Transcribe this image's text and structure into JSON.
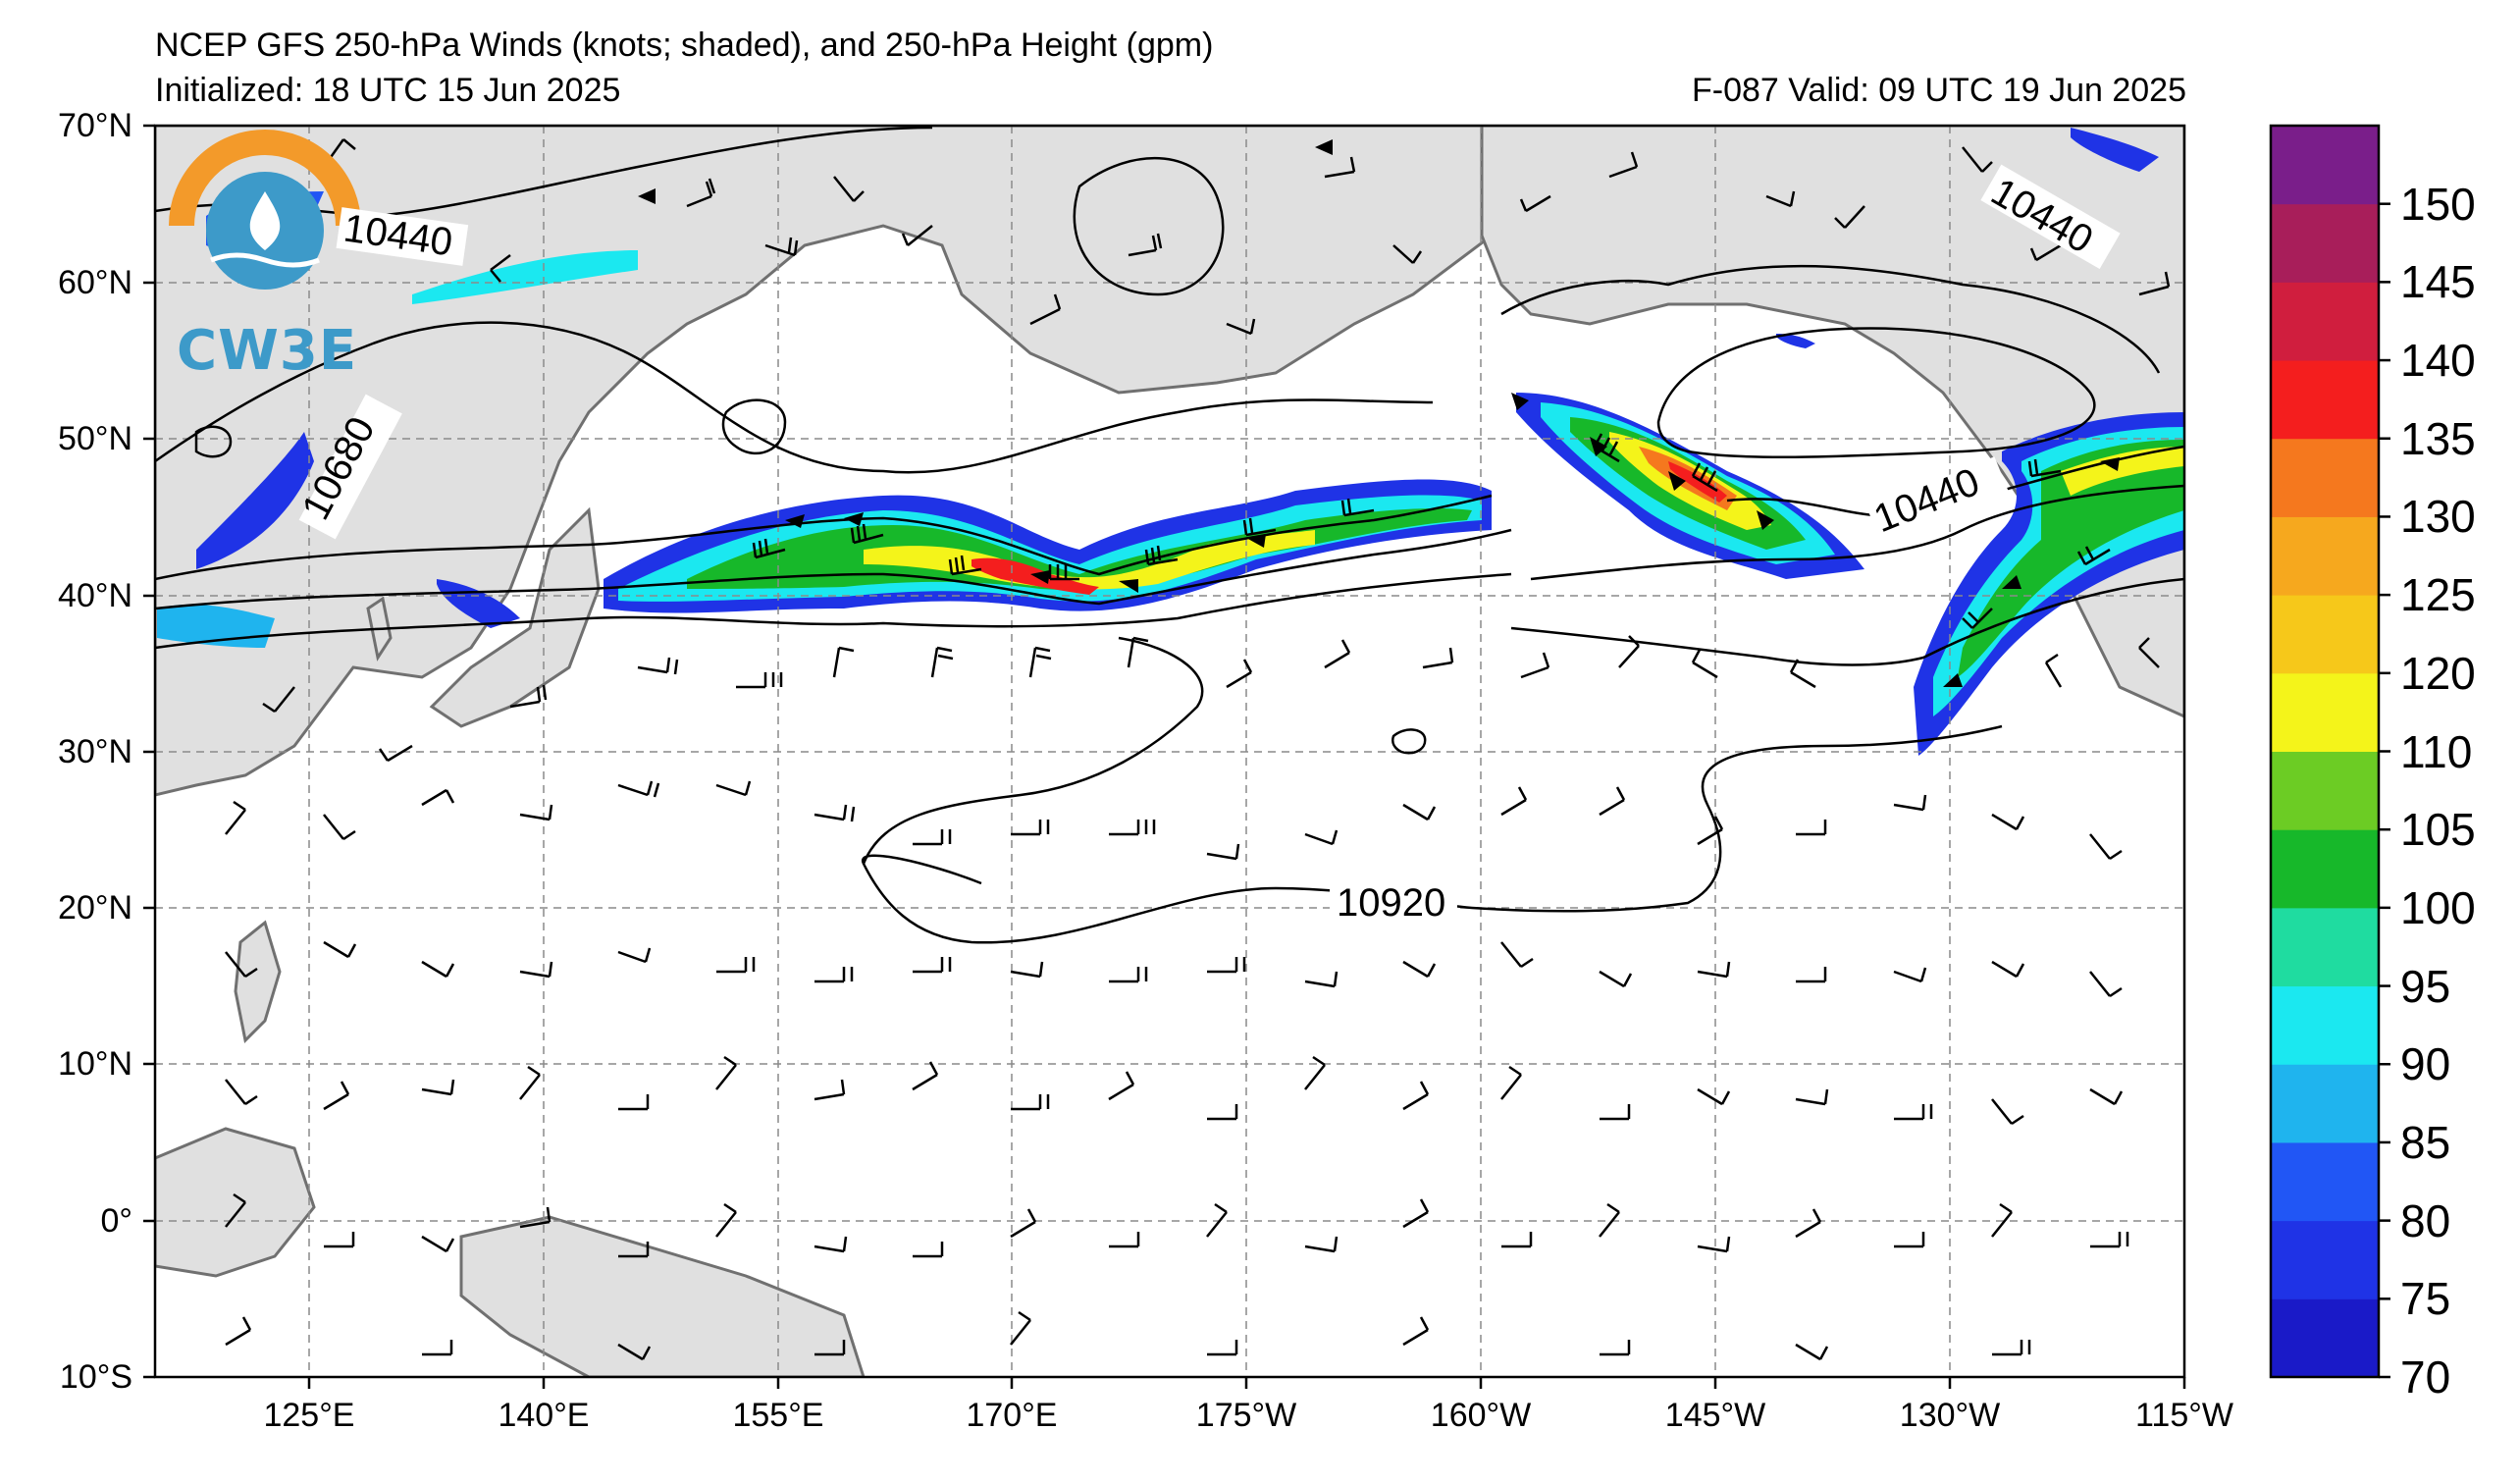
{
  "title_line1": "NCEP GFS 250-hPa Winds (knots; shaded), and 250-hPa Height (gpm)",
  "title_line2": "Initialized: 18 UTC 15 Jun 2025",
  "valid_line": "F-087  Valid: 09 UTC 19 Jun 2025",
  "logo_text": "CW3E",
  "lat_labels": [
    "70°N",
    "60°N",
    "50°N",
    "40°N",
    "30°N",
    "20°N",
    "10°N",
    "0°",
    "10°S"
  ],
  "lon_labels": [
    "125°E",
    "140°E",
    "155°E",
    "170°E",
    "175°W",
    "160°W",
    "145°W",
    "130°W",
    "115°W"
  ],
  "contour_labels": [
    "10440",
    "10680",
    "10440",
    "10440",
    "10920"
  ],
  "colorbar": {
    "levels": [
      "70",
      "75",
      "80",
      "85",
      "90",
      "95",
      "100",
      "105",
      "110",
      "120",
      "125",
      "130",
      "135",
      "140",
      "145",
      "150"
    ],
    "colors": [
      "#1a1ac8",
      "#1f33e6",
      "#2156f5",
      "#1fb4ee",
      "#1be8f0",
      "#1fdca0",
      "#17b82a",
      "#6ccc24",
      "#f4f41a",
      "#f6c81a",
      "#f6a81e",
      "#f5781e",
      "#f41e1e",
      "#d01e3e",
      "#a81e5a",
      "#7a1e8a"
    ]
  },
  "colors": {
    "land": "#e0e0e0",
    "coast": "#707070",
    "grid": "#8a8a8a",
    "logo_orange": "#f39a2a",
    "logo_blue": "#3d9ac9"
  }
}
